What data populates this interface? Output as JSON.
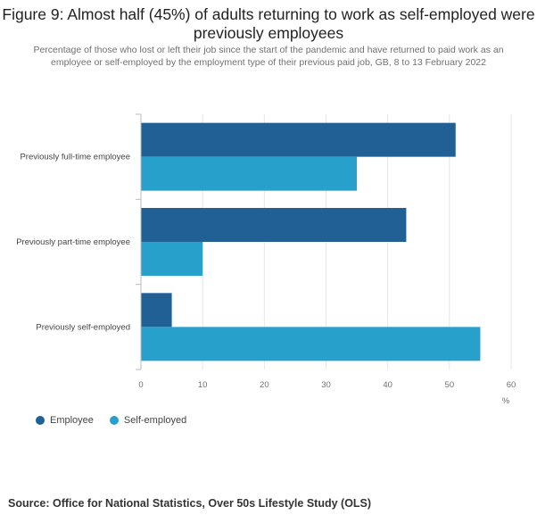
{
  "title": "Figure 9: Almost half (45%) of adults returning to work as self-employed were previously employees",
  "subtitle": "Percentage of those who lost or left their job since the start of the pandemic and have returned to paid work as an employee or self-employed by the employment type of their previous paid job, GB, 8 to 13 February 2022",
  "source": "Source: Office for National Statistics, Over 50s Lifestyle Study (OLS)",
  "chart_data": {
    "type": "bar",
    "orientation": "horizontal",
    "categories": [
      "Previously full-time employee",
      "Previously part-time employee",
      "Previously self-employed"
    ],
    "series": [
      {
        "name": "Employee",
        "color": "#206095",
        "values": [
          51,
          43,
          5
        ]
      },
      {
        "name": "Self-employed",
        "color": "#27a0cc",
        "values": [
          35,
          10,
          55
        ]
      }
    ],
    "xlim": [
      0,
      60
    ],
    "xticks": [
      0,
      10,
      20,
      30,
      40,
      50,
      60
    ],
    "xlabel": "%",
    "ylabel": "",
    "grid": true,
    "legend_position": "bottom-left"
  }
}
